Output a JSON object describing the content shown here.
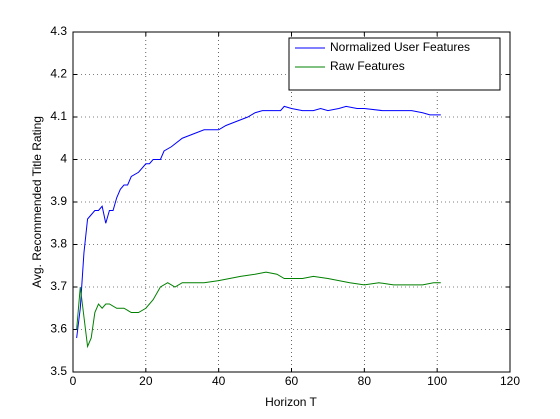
{
  "chart_data": {
    "type": "line",
    "xlabel": "Horizon T",
    "ylabel": "Avg. Recommended Title Rating",
    "xlim": [
      0,
      120
    ],
    "xticks": [
      0,
      20,
      40,
      60,
      80,
      100,
      120
    ],
    "ylim": [
      3.5,
      4.3
    ],
    "yticks": [
      3.5,
      3.6,
      3.7,
      3.8,
      3.9,
      4,
      4.1,
      4.2,
      4.3
    ],
    "grid": true,
    "legend": "northeast",
    "series": [
      {
        "name": "Normalized User Features",
        "color": "#0000ff",
        "x": [
          1,
          2,
          3,
          4,
          5,
          6,
          7,
          8,
          9,
          10,
          11,
          12,
          13,
          14,
          15,
          16,
          18,
          20,
          21,
          22,
          24,
          25,
          27,
          30,
          33,
          36,
          40,
          42,
          45,
          48,
          50,
          52,
          55,
          57,
          58,
          60,
          63,
          66,
          68,
          70,
          73,
          75,
          78,
          80,
          85,
          88,
          90,
          93,
          96,
          98,
          101
        ],
        "values": [
          3.58,
          3.65,
          3.78,
          3.86,
          3.87,
          3.88,
          3.88,
          3.89,
          3.85,
          3.88,
          3.88,
          3.91,
          3.93,
          3.94,
          3.94,
          3.96,
          3.97,
          3.99,
          3.99,
          4.0,
          4.0,
          4.02,
          4.03,
          4.05,
          4.06,
          4.07,
          4.07,
          4.08,
          4.09,
          4.1,
          4.11,
          4.115,
          4.115,
          4.115,
          4.125,
          4.12,
          4.115,
          4.115,
          4.12,
          4.115,
          4.12,
          4.125,
          4.12,
          4.12,
          4.115,
          4.115,
          4.115,
          4.115,
          4.11,
          4.105,
          4.105
        ]
      },
      {
        "name": "Raw Features",
        "color": "#008000",
        "x": [
          1,
          2,
          3,
          4,
          5,
          6,
          7,
          8,
          9,
          10,
          12,
          14,
          16,
          18,
          20,
          22,
          24,
          26,
          28,
          30,
          33,
          36,
          40,
          43,
          46,
          50,
          53,
          56,
          58,
          60,
          63,
          66,
          70,
          73,
          76,
          80,
          84,
          88,
          92,
          96,
          99,
          101
        ],
        "values": [
          3.6,
          3.7,
          3.63,
          3.56,
          3.58,
          3.64,
          3.66,
          3.65,
          3.66,
          3.66,
          3.65,
          3.65,
          3.64,
          3.64,
          3.65,
          3.67,
          3.7,
          3.71,
          3.7,
          3.71,
          3.71,
          3.71,
          3.715,
          3.72,
          3.725,
          3.73,
          3.735,
          3.73,
          3.72,
          3.72,
          3.72,
          3.725,
          3.72,
          3.715,
          3.71,
          3.705,
          3.71,
          3.705,
          3.705,
          3.705,
          3.71,
          3.71
        ]
      }
    ]
  }
}
